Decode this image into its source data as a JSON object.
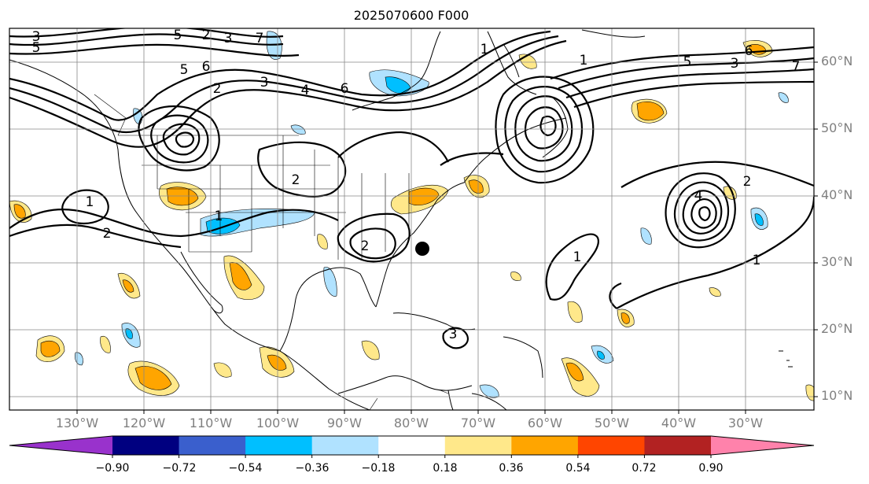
{
  "title": "2025070600 F000",
  "lat_labels": [
    "60°N",
    "50°N",
    "40°N",
    "30°N",
    "20°N",
    "10°N"
  ],
  "lon_labels": [
    "130°W",
    "120°W",
    "110°W",
    "100°W",
    "90°W",
    "80°W",
    "70°W",
    "60°W",
    "50°W",
    "40°W",
    "30°W"
  ],
  "contour_labels": [
    "3",
    "5",
    "3",
    "2",
    "7",
    "5",
    "6",
    "5",
    "2",
    "3",
    "4",
    "6",
    "1",
    "5",
    "3",
    "7",
    "6",
    "2",
    "1",
    "1",
    "2",
    "1",
    "4",
    "3",
    "2",
    "1",
    "2",
    "1"
  ],
  "colorbar": {
    "labels": [
      "−0.90",
      "−0.72",
      "−0.54",
      "−0.36",
      "−0.18",
      "0.18",
      "0.36",
      "0.54",
      "0.72",
      "0.90"
    ],
    "colors": [
      "#9932cc",
      "#000080",
      "#3a5fcd",
      "#00bfff",
      "#b0e2ff",
      "#ffffff",
      "#ffe88a",
      "#ffa500",
      "#ff4500",
      "#b22222",
      "#ff82ab"
    ]
  },
  "storm_marker": "black-dot"
}
